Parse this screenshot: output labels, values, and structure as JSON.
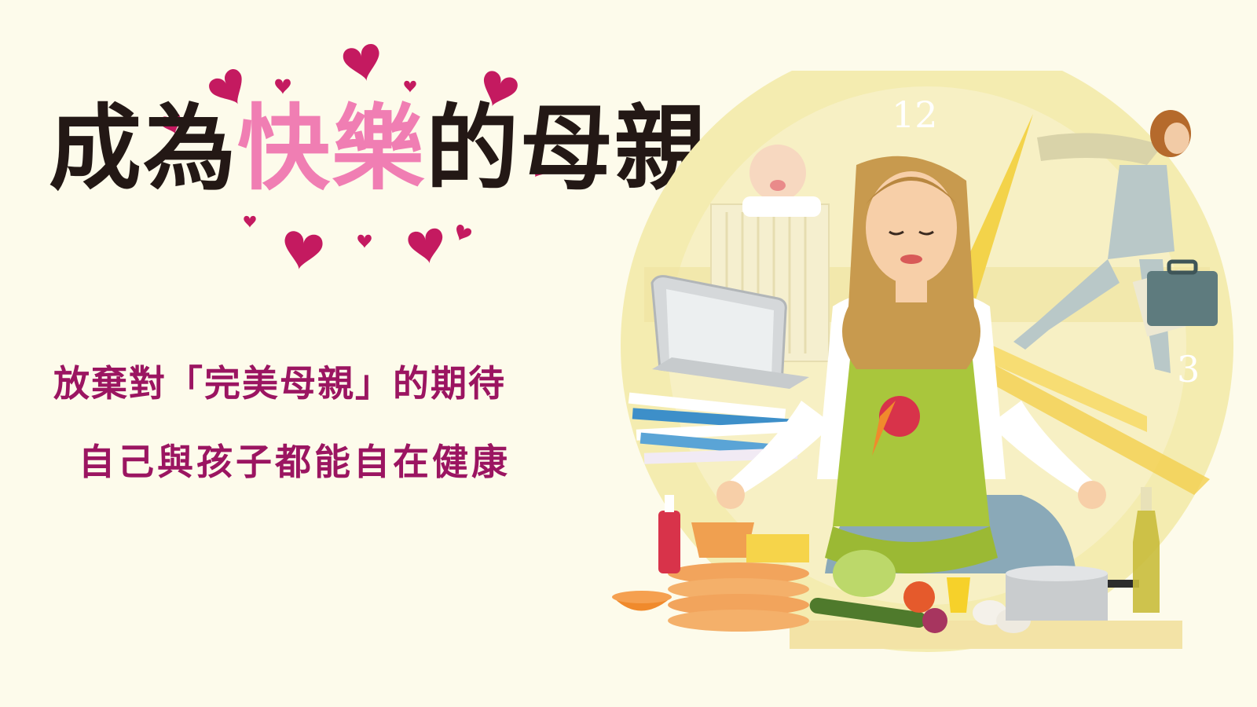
{
  "title": {
    "part1": "成為",
    "highlight": "快樂",
    "part2": "的母親"
  },
  "subtitle": {
    "line1": "放棄對「完美母親」的期待",
    "line2": "自己與孩子都能自在健康"
  },
  "clock": {
    "number_12": "12",
    "number_3": "3"
  },
  "colors": {
    "background": "#fdfbeb",
    "title_dark": "#231815",
    "title_pink": "#f07eb3",
    "heart": "#c41a60",
    "subtitle": "#9b1561",
    "clock_face": "#f4ecb0",
    "apron": "#a9c63c"
  },
  "icons": [
    "heart-icon",
    "clock-icon",
    "laptop-icon",
    "briefcase-icon",
    "crib-icon"
  ]
}
